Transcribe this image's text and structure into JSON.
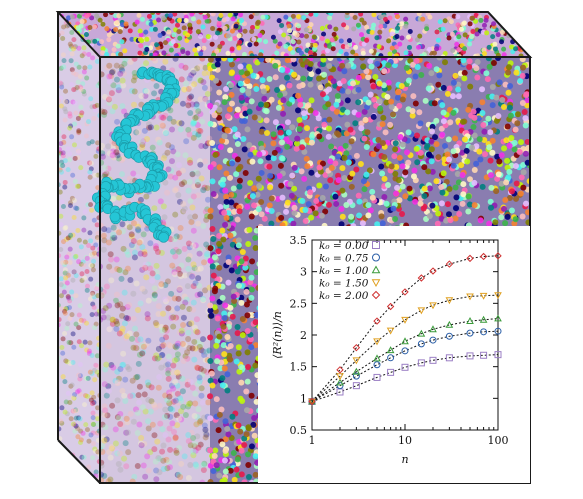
{
  "figure": {
    "colors": {
      "box_edge": "#1a1a1a",
      "highlight_polymer": "#25c6d6",
      "panel_background": "#ffffff"
    }
  },
  "chart_data": {
    "type": "scatter",
    "title": "",
    "xlabel": "n",
    "ylabel": "⟨R²(n)⟩/n",
    "xscale": "log",
    "xlim": [
      1,
      100
    ],
    "ylim": [
      0.5,
      3.5
    ],
    "xticks": [
      "1",
      "10",
      "100"
    ],
    "yticks": [
      "0.5",
      "1",
      "1.5",
      "2",
      "2.5",
      "3",
      "3.5"
    ],
    "legend_position": "top-left",
    "grid": false,
    "fit_line_style": "black dashed",
    "series": [
      {
        "name": "k₀ = 0.00",
        "marker": "square",
        "color": "#9b7fc4",
        "x": [
          1,
          2,
          3,
          5,
          7,
          10,
          15,
          20,
          30,
          50,
          70,
          100
        ],
        "y": [
          0.95,
          1.1,
          1.2,
          1.33,
          1.41,
          1.49,
          1.56,
          1.6,
          1.64,
          1.67,
          1.68,
          1.69
        ]
      },
      {
        "name": "k₀ = 0.75",
        "marker": "circle",
        "color": "#2b5fa8",
        "x": [
          1,
          2,
          3,
          5,
          7,
          10,
          15,
          20,
          30,
          50,
          70,
          100
        ],
        "y": [
          0.95,
          1.2,
          1.35,
          1.53,
          1.64,
          1.75,
          1.86,
          1.92,
          1.98,
          2.03,
          2.05,
          2.06
        ]
      },
      {
        "name": "k₀ = 1.00",
        "marker": "triangle-up",
        "color": "#3a9a3a",
        "x": [
          1,
          2,
          3,
          5,
          7,
          10,
          15,
          20,
          30,
          50,
          70,
          100
        ],
        "y": [
          0.95,
          1.25,
          1.42,
          1.63,
          1.76,
          1.9,
          2.02,
          2.09,
          2.16,
          2.22,
          2.24,
          2.26
        ]
      },
      {
        "name": "k₀ = 1.50",
        "marker": "triangle-down",
        "color": "#e0a020",
        "x": [
          1,
          2,
          3,
          5,
          7,
          10,
          15,
          20,
          30,
          50,
          70,
          100
        ],
        "y": [
          0.95,
          1.35,
          1.6,
          1.9,
          2.07,
          2.24,
          2.39,
          2.47,
          2.55,
          2.61,
          2.62,
          2.63
        ]
      },
      {
        "name": "k₀ = 2.00",
        "marker": "diamond",
        "color": "#d03030",
        "x": [
          1,
          2,
          3,
          5,
          7,
          10,
          15,
          20,
          30,
          50,
          70,
          100
        ],
        "y": [
          0.95,
          1.45,
          1.8,
          2.22,
          2.45,
          2.68,
          2.9,
          3.01,
          3.12,
          3.21,
          3.24,
          3.25
        ]
      }
    ]
  }
}
